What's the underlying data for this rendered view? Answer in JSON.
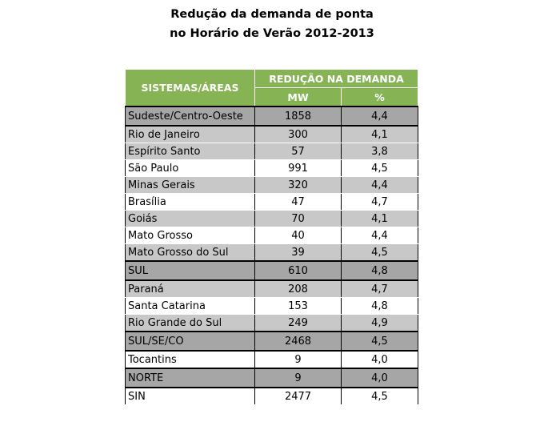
{
  "title_line1": "Redução da demanda de ponta",
  "title_line2": "no Horário de Verão 2012-2013",
  "header": {
    "sistemas": "SISTEMAS/ÁREAS",
    "reducao": "REDUÇÃO  NA DEMANDA",
    "mw": "MW",
    "pct": "%"
  },
  "rows": [
    {
      "area": "Sudeste/Centro-Oeste",
      "mw": "1858",
      "pct": "4,4",
      "style": "total"
    },
    {
      "area": "Rio de Janeiro",
      "mw": "300",
      "pct": "4,1",
      "style": "gray"
    },
    {
      "area": "Espírito Santo",
      "mw": "57",
      "pct": "3,8",
      "style": "gray"
    },
    {
      "area": "São Paulo",
      "mw": "991",
      "pct": "4,5",
      "style": "white"
    },
    {
      "area": "Minas Gerais",
      "mw": "320",
      "pct": "4,4",
      "style": "gray"
    },
    {
      "area": "Brasília",
      "mw": "47",
      "pct": "4,7",
      "style": "white"
    },
    {
      "area": "Goiás",
      "mw": "70",
      "pct": "4,1",
      "style": "gray"
    },
    {
      "area": "Mato Grosso",
      "mw": "40",
      "pct": "4,4",
      "style": "white"
    },
    {
      "area": "Mato Grosso do Sul",
      "mw": "39",
      "pct": "4,5",
      "style": "gray"
    },
    {
      "area": "SUL",
      "mw": "610",
      "pct": "4,8",
      "style": "total"
    },
    {
      "area": "Paraná",
      "mw": "208",
      "pct": "4,7",
      "style": "gray"
    },
    {
      "area": "Santa Catarina",
      "mw": "153",
      "pct": "4,8",
      "style": "white"
    },
    {
      "area": "Rio Grande do Sul",
      "mw": "249",
      "pct": "4,9",
      "style": "gray"
    },
    {
      "area": "SUL/SE/CO",
      "mw": "2468",
      "pct": "4,5",
      "style": "total"
    },
    {
      "area": "Tocantins",
      "mw": "9",
      "pct": "4,0",
      "style": "white"
    },
    {
      "area": "NORTE",
      "mw": "9",
      "pct": "4,0",
      "style": "total"
    },
    {
      "area": "SIN",
      "mw": "2477",
      "pct": "4,5",
      "style": "white"
    }
  ],
  "colors": {
    "header_green": "#86b454",
    "row_gray": "#c8c8c8",
    "total_gray": "#a6a6a6"
  }
}
